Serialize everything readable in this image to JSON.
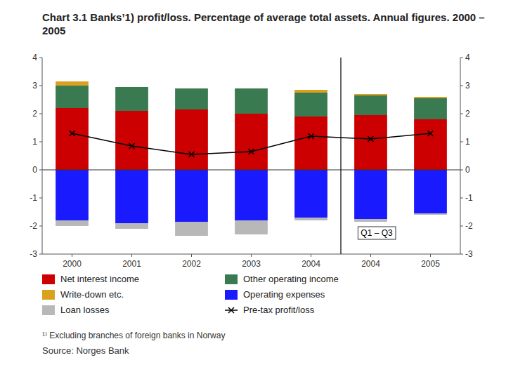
{
  "chart_data": {
    "type": "bar",
    "stacked": true,
    "title": "Chart 3.1 Banks’1) profit/loss. Percentage of average total assets. Annual figures. 2000 – 2005",
    "categories": [
      "2000",
      "2001",
      "2002",
      "2003",
      "2004",
      "2004",
      "2005"
    ],
    "series": [
      {
        "name": "Net interest income",
        "color": "#cc0000",
        "values": [
          2.2,
          2.1,
          2.15,
          2.0,
          1.9,
          1.95,
          1.8
        ]
      },
      {
        "name": "Other operating income",
        "color": "#3a7a50",
        "values": [
          0.8,
          0.85,
          0.75,
          0.9,
          0.85,
          0.7,
          0.75
        ]
      },
      {
        "name": "Write-down etc.",
        "color": "#daa020",
        "values": [
          0.15,
          0.0,
          0.0,
          0.0,
          0.1,
          0.05,
          0.05
        ]
      },
      {
        "name": "Operating expenses",
        "color": "#1a1aff",
        "values": [
          -1.8,
          -1.9,
          -1.85,
          -1.8,
          -1.7,
          -1.75,
          -1.55
        ]
      },
      {
        "name": "Loan losses",
        "color": "#b8b8b8",
        "values": [
          -0.2,
          -0.2,
          -0.5,
          -0.5,
          -0.1,
          -0.1,
          -0.05
        ]
      },
      {
        "name": "Pre-tax profit/loss",
        "type": "line",
        "color": "#000000",
        "marker": "x",
        "line_style": "solid",
        "values": [
          1.3,
          0.85,
          0.55,
          0.65,
          1.2,
          1.1,
          1.3
        ]
      }
    ],
    "ylim": [
      -3,
      4
    ],
    "yticks": [
      -3,
      -2,
      -1,
      0,
      1,
      2,
      3,
      4
    ],
    "y2lim": [
      -3,
      4
    ],
    "y2ticks": [
      -3,
      -2,
      -1,
      0,
      1,
      2,
      3,
      4
    ],
    "grid": false,
    "legend": "bottom",
    "annotations": [
      {
        "text": "Q1 – Q3",
        "x": 5.1,
        "y": -2.25
      },
      {
        "type": "vline",
        "x": 4.5
      }
    ],
    "footnote": "¹⁾ Excluding branches of foreign banks in Norway",
    "source": "Source: Norges Bank"
  }
}
